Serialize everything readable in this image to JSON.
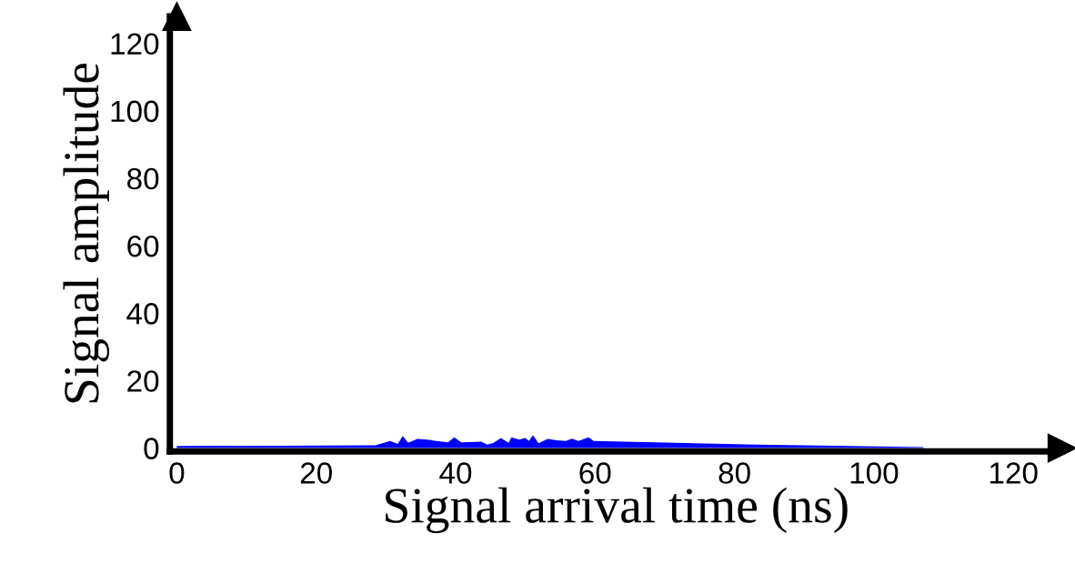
{
  "chart_data": {
    "type": "area",
    "xlabel": "Signal arrival time (ns)",
    "ylabel": "Signal amplitude",
    "x": [
      0,
      28.5,
      30.6,
      31.7,
      32.4,
      33.2,
      34.5,
      35.9,
      37.2,
      38.9,
      39.8,
      40.8,
      43.7,
      44.5,
      45.4,
      46.5,
      47.6,
      48.0,
      49.1,
      50.0,
      50.5,
      51.1,
      51.9,
      53.2,
      54.5,
      55.8,
      56.7,
      57.6,
      59.1,
      59.8,
      83.2,
      107.1
    ],
    "series": [
      {
        "color": "#0000ff",
        "values": [
          0.6,
          0.8,
          2.1,
          1.2,
          3.6,
          1.6,
          2.7,
          2.5,
          2.1,
          1.7,
          3.2,
          1.7,
          1.9,
          1.0,
          1.5,
          3.0,
          1.6,
          3.2,
          2.5,
          3.0,
          2.1,
          3.8,
          1.4,
          2.7,
          2.3,
          2.1,
          2.8,
          2.1,
          3.2,
          2.1,
          1.0,
          0.3
        ]
      }
    ],
    "xlim": [
      -1,
      127
    ],
    "ylim": [
      -1,
      128
    ],
    "xticks": [
      0,
      20,
      40,
      60,
      80,
      100,
      120
    ],
    "yticks": [
      0,
      20,
      40,
      60,
      80,
      100,
      120
    ],
    "grid": false,
    "legend": false
  }
}
